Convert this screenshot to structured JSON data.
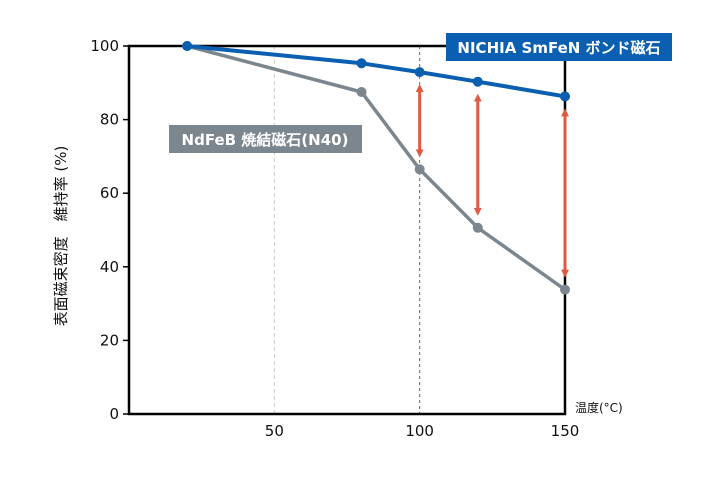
{
  "chart_data": {
    "type": "line",
    "title": "",
    "xlabel": "温度(°C)",
    "ylabel": "表面磁束密度　維持率 (%)",
    "xlim": [
      0,
      150
    ],
    "ylim": [
      0,
      100
    ],
    "x_ticks": [
      50,
      100,
      150
    ],
    "y_ticks": [
      0,
      20,
      40,
      60,
      80,
      100
    ],
    "grid": "vertical dashed at 50 and 100",
    "series": [
      {
        "name": "NICHIA SmFeN ボンド磁石",
        "color": "#0a5fb0",
        "x": [
          20,
          80,
          100,
          120,
          150
        ],
        "y": [
          100,
          95.3,
          92.9,
          90.3,
          86.3
        ]
      },
      {
        "name": "NdFeB 焼結磁石(N40)",
        "color": "#7c868e",
        "x": [
          20,
          80,
          100,
          120,
          150
        ],
        "y": [
          100,
          87.5,
          66.5,
          50.6,
          33.8
        ]
      }
    ],
    "arrow_color": "#e05a40",
    "arrows_at_x": [
      100,
      120,
      150
    ]
  }
}
